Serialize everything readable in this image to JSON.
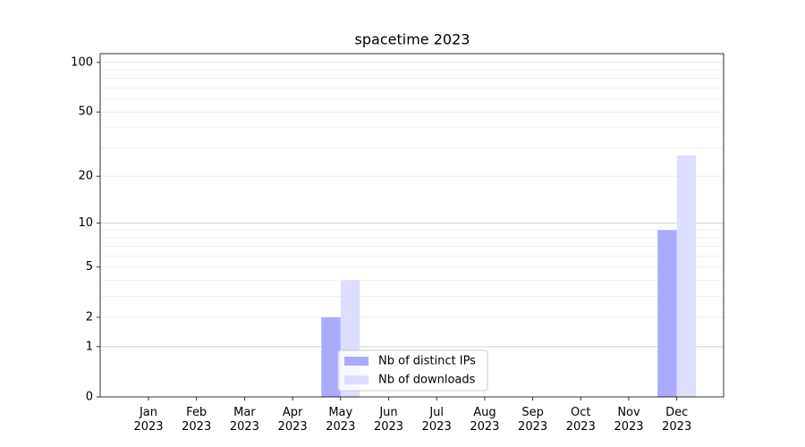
{
  "chart_data": {
    "type": "bar",
    "title": "spacetime 2023",
    "categories": [
      "Jan 2023",
      "Feb 2023",
      "Mar 2023",
      "Apr 2023",
      "May 2023",
      "Jun 2023",
      "Jul 2023",
      "Aug 2023",
      "Sep 2023",
      "Oct 2023",
      "Nov 2023",
      "Dec 2023"
    ],
    "series": [
      {
        "name": "Nb of distinct IPs",
        "color": "#aaaaff",
        "values": [
          0,
          0,
          0,
          0,
          2,
          0,
          0,
          0,
          0,
          0,
          0,
          9
        ]
      },
      {
        "name": "Nb of downloads",
        "color": "#ddddff",
        "values": [
          0,
          0,
          0,
          0,
          4,
          0,
          0,
          0,
          0,
          0,
          0,
          27
        ]
      }
    ],
    "yscale": "log1p",
    "ylim": [
      0,
      113
    ],
    "yticks": [
      0,
      1,
      2,
      5,
      10,
      20,
      50,
      100
    ],
    "minor_yticks": [
      3,
      4,
      6,
      7,
      8,
      9,
      30,
      40,
      60,
      70,
      80,
      90
    ],
    "grid": true,
    "legend": "lower center"
  }
}
